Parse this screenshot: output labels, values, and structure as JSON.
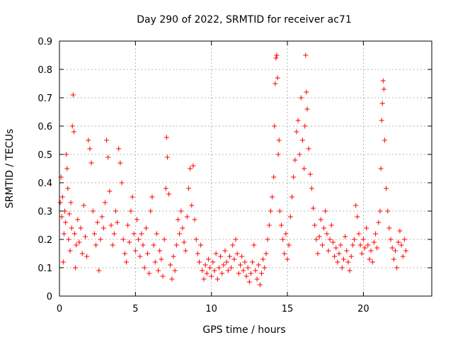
{
  "chart_data": {
    "type": "scatter",
    "title": "Day 290 of 2022, SRMTID for receiver ac71",
    "xlabel": "GPS time / hours",
    "ylabel": "SRMTID / TECUs",
    "xlim": [
      0,
      24.5
    ],
    "ylim": [
      0,
      0.9
    ],
    "xticks": [
      0,
      5,
      10,
      15,
      20
    ],
    "xtick_labels": [
      "0",
      "5",
      "10",
      "15",
      "20"
    ],
    "yticks": [
      0,
      0.1,
      0.2,
      0.3,
      0.4,
      0.5,
      0.6,
      0.7,
      0.8,
      0.9
    ],
    "ytick_labels": [
      "0",
      "0.1",
      "0.2",
      "0.3",
      "0.4",
      "0.5",
      "0.6",
      "0.7",
      "0.8",
      "0.9"
    ],
    "grid": true,
    "marker": "+",
    "color": "#ff0000",
    "series": [
      {
        "name": "SRMTID",
        "points": [
          [
            0.05,
            0.33
          ],
          [
            0.1,
            0.42
          ],
          [
            0.15,
            0.28
          ],
          [
            0.2,
            0.35
          ],
          [
            0.25,
            0.12
          ],
          [
            0.3,
            0.22
          ],
          [
            0.35,
            0.3
          ],
          [
            0.4,
            0.26
          ],
          [
            0.45,
            0.5
          ],
          [
            0.5,
            0.45
          ],
          [
            0.55,
            0.38
          ],
          [
            0.6,
            0.2
          ],
          [
            0.65,
            0.29
          ],
          [
            0.7,
            0.16
          ],
          [
            0.75,
            0.33
          ],
          [
            0.8,
            0.24
          ],
          [
            0.85,
            0.6
          ],
          [
            0.9,
            0.71
          ],
          [
            0.95,
            0.58
          ],
          [
            1.0,
            0.22
          ],
          [
            1.05,
            0.1
          ],
          [
            1.1,
            0.18
          ],
          [
            1.2,
            0.27
          ],
          [
            1.3,
            0.19
          ],
          [
            1.4,
            0.24
          ],
          [
            1.5,
            0.15
          ],
          [
            1.6,
            0.32
          ],
          [
            1.7,
            0.21
          ],
          [
            1.8,
            0.14
          ],
          [
            1.9,
            0.55
          ],
          [
            2.0,
            0.52
          ],
          [
            2.1,
            0.47
          ],
          [
            2.2,
            0.3
          ],
          [
            2.3,
            0.22
          ],
          [
            2.4,
            0.18
          ],
          [
            2.5,
            0.26
          ],
          [
            2.6,
            0.09
          ],
          [
            2.7,
            0.2
          ],
          [
            2.8,
            0.28
          ],
          [
            2.9,
            0.24
          ],
          [
            3.0,
            0.33
          ],
          [
            3.1,
            0.55
          ],
          [
            3.2,
            0.49
          ],
          [
            3.3,
            0.37
          ],
          [
            3.4,
            0.25
          ],
          [
            3.5,
            0.18
          ],
          [
            3.6,
            0.22
          ],
          [
            3.7,
            0.3
          ],
          [
            3.8,
            0.26
          ],
          [
            3.9,
            0.52
          ],
          [
            4.0,
            0.47
          ],
          [
            4.1,
            0.4
          ],
          [
            4.2,
            0.2
          ],
          [
            4.3,
            0.15
          ],
          [
            4.4,
            0.12
          ],
          [
            4.5,
            0.25
          ],
          [
            4.6,
            0.19
          ],
          [
            4.7,
            0.3
          ],
          [
            4.8,
            0.35
          ],
          [
            4.9,
            0.22
          ],
          [
            5.0,
            0.16
          ],
          [
            5.1,
            0.27
          ],
          [
            5.2,
            0.2
          ],
          [
            5.3,
            0.14
          ],
          [
            5.4,
            0.22
          ],
          [
            5.5,
            0.18
          ],
          [
            5.6,
            0.1
          ],
          [
            5.7,
            0.24
          ],
          [
            5.8,
            0.15
          ],
          [
            5.9,
            0.08
          ],
          [
            6.0,
            0.3
          ],
          [
            6.1,
            0.35
          ],
          [
            6.2,
            0.18
          ],
          [
            6.3,
            0.12
          ],
          [
            6.4,
            0.22
          ],
          [
            6.5,
            0.09
          ],
          [
            6.6,
            0.16
          ],
          [
            6.7,
            0.13
          ],
          [
            6.8,
            0.07
          ],
          [
            6.9,
            0.2
          ],
          [
            7.0,
            0.38
          ],
          [
            7.05,
            0.56
          ],
          [
            7.1,
            0.49
          ],
          [
            7.2,
            0.36
          ],
          [
            7.3,
            0.11
          ],
          [
            7.4,
            0.06
          ],
          [
            7.5,
            0.14
          ],
          [
            7.6,
            0.09
          ],
          [
            7.7,
            0.18
          ],
          [
            7.8,
            0.27
          ],
          [
            7.9,
            0.22
          ],
          [
            8.0,
            0.3
          ],
          [
            8.1,
            0.24
          ],
          [
            8.2,
            0.19
          ],
          [
            8.3,
            0.16
          ],
          [
            8.4,
            0.28
          ],
          [
            8.5,
            0.38
          ],
          [
            8.6,
            0.45
          ],
          [
            8.7,
            0.32
          ],
          [
            8.8,
            0.46
          ],
          [
            8.9,
            0.27
          ],
          [
            9.0,
            0.2
          ],
          [
            9.1,
            0.15
          ],
          [
            9.2,
            0.12
          ],
          [
            9.3,
            0.18
          ],
          [
            9.4,
            0.09
          ],
          [
            9.5,
            0.06
          ],
          [
            9.6,
            0.11
          ],
          [
            9.7,
            0.08
          ],
          [
            9.8,
            0.13
          ],
          [
            9.9,
            0.1
          ],
          [
            10.0,
            0.07
          ],
          [
            10.1,
            0.12
          ],
          [
            10.2,
            0.09
          ],
          [
            10.3,
            0.15
          ],
          [
            10.4,
            0.06
          ],
          [
            10.5,
            0.1
          ],
          [
            10.6,
            0.14
          ],
          [
            10.7,
            0.08
          ],
          [
            10.8,
            0.11
          ],
          [
            10.9,
            0.16
          ],
          [
            11.0,
            0.12
          ],
          [
            11.1,
            0.09
          ],
          [
            11.2,
            0.14
          ],
          [
            11.3,
            0.1
          ],
          [
            11.4,
            0.18
          ],
          [
            11.5,
            0.13
          ],
          [
            11.6,
            0.2
          ],
          [
            11.7,
            0.15
          ],
          [
            11.8,
            0.08
          ],
          [
            11.9,
            0.11
          ],
          [
            12.0,
            0.14
          ],
          [
            12.1,
            0.09
          ],
          [
            12.2,
            0.12
          ],
          [
            12.3,
            0.07
          ],
          [
            12.4,
            0.1
          ],
          [
            12.5,
            0.05
          ],
          [
            12.6,
            0.08
          ],
          [
            12.7,
            0.12
          ],
          [
            12.8,
            0.18
          ],
          [
            12.9,
            0.09
          ],
          [
            13.0,
            0.06
          ],
          [
            13.1,
            0.11
          ],
          [
            13.2,
            0.04
          ],
          [
            13.3,
            0.08
          ],
          [
            13.4,
            0.13
          ],
          [
            13.5,
            0.1
          ],
          [
            13.6,
            0.15
          ],
          [
            13.7,
            0.2
          ],
          [
            13.8,
            0.25
          ],
          [
            13.9,
            0.3
          ],
          [
            14.0,
            0.35
          ],
          [
            14.1,
            0.42
          ],
          [
            14.15,
            0.6
          ],
          [
            14.2,
            0.75
          ],
          [
            14.25,
            0.84
          ],
          [
            14.3,
            0.85
          ],
          [
            14.35,
            0.77
          ],
          [
            14.4,
            0.5
          ],
          [
            14.45,
            0.55
          ],
          [
            14.5,
            0.3
          ],
          [
            14.6,
            0.25
          ],
          [
            14.7,
            0.2
          ],
          [
            14.8,
            0.15
          ],
          [
            14.9,
            0.22
          ],
          [
            15.0,
            0.13
          ],
          [
            15.1,
            0.18
          ],
          [
            15.2,
            0.28
          ],
          [
            15.3,
            0.35
          ],
          [
            15.4,
            0.42
          ],
          [
            15.5,
            0.48
          ],
          [
            15.6,
            0.58
          ],
          [
            15.7,
            0.62
          ],
          [
            15.8,
            0.5
          ],
          [
            15.9,
            0.7
          ],
          [
            16.0,
            0.55
          ],
          [
            16.1,
            0.45
          ],
          [
            16.15,
            0.6
          ],
          [
            16.2,
            0.85
          ],
          [
            16.25,
            0.72
          ],
          [
            16.3,
            0.66
          ],
          [
            16.4,
            0.52
          ],
          [
            16.5,
            0.43
          ],
          [
            16.6,
            0.38
          ],
          [
            16.7,
            0.31
          ],
          [
            16.8,
            0.25
          ],
          [
            16.9,
            0.2
          ],
          [
            17.0,
            0.15
          ],
          [
            17.1,
            0.21
          ],
          [
            17.2,
            0.27
          ],
          [
            17.3,
            0.18
          ],
          [
            17.4,
            0.24
          ],
          [
            17.5,
            0.3
          ],
          [
            17.6,
            0.22
          ],
          [
            17.7,
            0.16
          ],
          [
            17.8,
            0.2
          ],
          [
            17.9,
            0.25
          ],
          [
            18.0,
            0.19
          ],
          [
            18.1,
            0.14
          ],
          [
            18.2,
            0.17
          ],
          [
            18.3,
            0.12
          ],
          [
            18.4,
            0.15
          ],
          [
            18.5,
            0.18
          ],
          [
            18.6,
            0.1
          ],
          [
            18.7,
            0.13
          ],
          [
            18.8,
            0.21
          ],
          [
            18.9,
            0.16
          ],
          [
            19.0,
            0.12
          ],
          [
            19.1,
            0.09
          ],
          [
            19.2,
            0.14
          ],
          [
            19.3,
            0.18
          ],
          [
            19.4,
            0.2
          ],
          [
            19.5,
            0.32
          ],
          [
            19.6,
            0.28
          ],
          [
            19.7,
            0.22
          ],
          [
            19.8,
            0.18
          ],
          [
            19.9,
            0.15
          ],
          [
            20.0,
            0.2
          ],
          [
            20.1,
            0.17
          ],
          [
            20.2,
            0.24
          ],
          [
            20.3,
            0.18
          ],
          [
            20.4,
            0.13
          ],
          [
            20.5,
            0.16
          ],
          [
            20.6,
            0.12
          ],
          [
            20.7,
            0.19
          ],
          [
            20.8,
            0.22
          ],
          [
            20.9,
            0.17
          ],
          [
            21.0,
            0.26
          ],
          [
            21.1,
            0.3
          ],
          [
            21.15,
            0.45
          ],
          [
            21.2,
            0.62
          ],
          [
            21.25,
            0.68
          ],
          [
            21.3,
            0.76
          ],
          [
            21.35,
            0.73
          ],
          [
            21.4,
            0.55
          ],
          [
            21.5,
            0.38
          ],
          [
            21.6,
            0.3
          ],
          [
            21.7,
            0.24
          ],
          [
            21.8,
            0.2
          ],
          [
            21.9,
            0.17
          ],
          [
            22.0,
            0.13
          ],
          [
            22.1,
            0.16
          ],
          [
            22.2,
            0.1
          ],
          [
            22.3,
            0.19
          ],
          [
            22.4,
            0.23
          ],
          [
            22.5,
            0.18
          ],
          [
            22.6,
            0.14
          ],
          [
            22.7,
            0.2
          ],
          [
            22.8,
            0.16
          ]
        ]
      }
    ]
  }
}
